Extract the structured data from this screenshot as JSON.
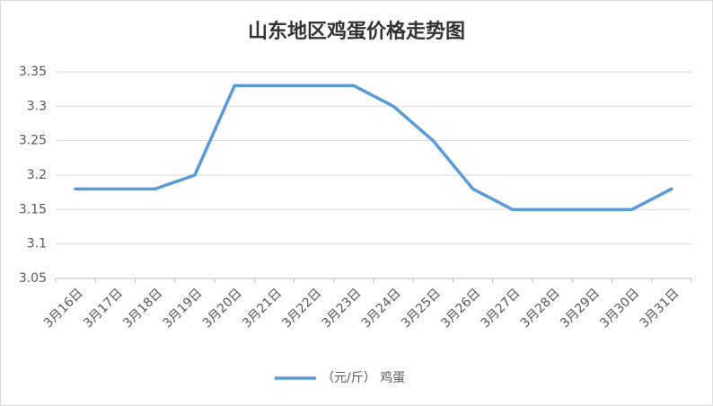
{
  "chart_data": {
    "type": "line",
    "title": "山东地区鸡蛋价格走势图",
    "categories": [
      "3月16日",
      "3月17日",
      "3月18日",
      "3月19日",
      "3月20日",
      "3月21日",
      "3月22日",
      "3月23日",
      "3月24日",
      "3月25日",
      "3月26日",
      "3月27日",
      "3月28日",
      "3月29日",
      "3月30日",
      "3月31日"
    ],
    "series": [
      {
        "name": "（元/斤） 鸡蛋",
        "color": "#5b9bd5",
        "values": [
          3.18,
          3.18,
          3.18,
          3.2,
          3.33,
          3.33,
          3.33,
          3.33,
          3.3,
          3.25,
          3.18,
          3.15,
          3.15,
          3.15,
          3.15,
          3.18
        ]
      }
    ],
    "ylim": [
      3.05,
      3.35
    ],
    "yticks": [
      3.05,
      3.1,
      3.15,
      3.2,
      3.25,
      3.3,
      3.35
    ],
    "grid": true,
    "legend": "bottom"
  }
}
